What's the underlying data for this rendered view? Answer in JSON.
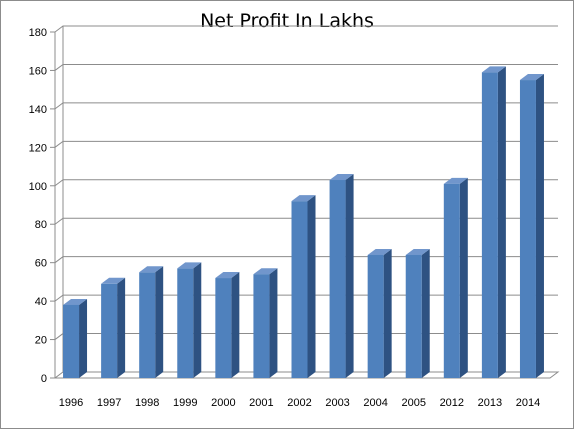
{
  "chart_data": {
    "type": "bar",
    "title": "Net  Profit In Lakhs",
    "categories": [
      "1996",
      "1997",
      "1998",
      "1999",
      "2000",
      "2001",
      "2002",
      "2003",
      "2004",
      "2005",
      "2012",
      "2013",
      "2014"
    ],
    "values": [
      38,
      49,
      55,
      57,
      52,
      54,
      92,
      103,
      64,
      64,
      101,
      159,
      155
    ],
    "ylim": [
      0,
      180
    ],
    "yticks": [
      "0",
      "20",
      "40",
      "60",
      "80",
      "100",
      "120",
      "140",
      "160",
      "180"
    ],
    "grid": "horizontal",
    "legend": "none",
    "colors": {
      "bar_front": "#4f81bd",
      "bar_side": "#2e5282",
      "bar_top": "#7196cc",
      "grid": "#8c8c8c"
    }
  }
}
